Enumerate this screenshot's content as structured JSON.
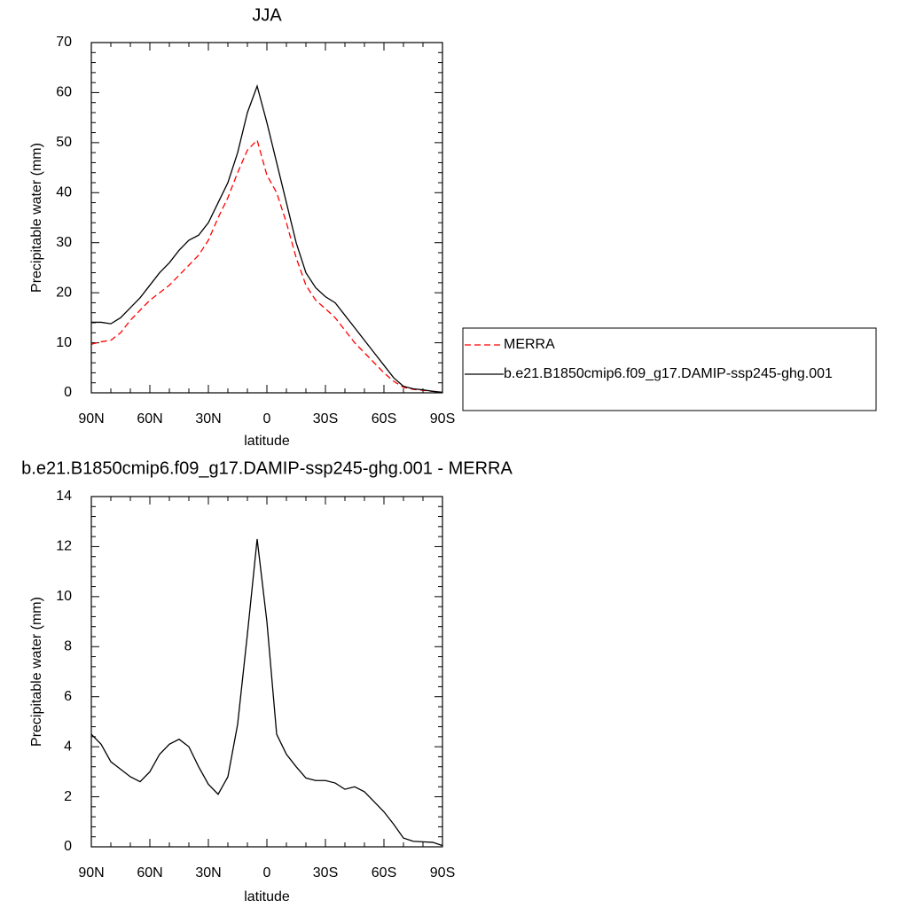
{
  "chart_data": [
    {
      "type": "line",
      "title": "JJA",
      "xlabel": "latitude",
      "ylabel": "Precipitable water (mm)",
      "x": [
        90,
        85,
        80,
        75,
        70,
        65,
        60,
        55,
        50,
        45,
        40,
        35,
        30,
        25,
        20,
        15,
        10,
        5,
        0,
        -5,
        -10,
        -15,
        -20,
        -25,
        -30,
        -35,
        -40,
        -45,
        -50,
        -55,
        -60,
        -65,
        -70,
        -75,
        -80,
        -85,
        -90
      ],
      "series": [
        {
          "name": "MERRA",
          "color": "#ff0000",
          "line_style": "dashed",
          "values": [
            9.7,
            10.2,
            10.5,
            12,
            14.5,
            16.5,
            18.5,
            20,
            21.5,
            23.5,
            25.5,
            27.5,
            30.5,
            35,
            39,
            44,
            48.5,
            50.5,
            43.5,
            40,
            34,
            27,
            21.5,
            18.5,
            16.8,
            15,
            12.5,
            10,
            8,
            6,
            4,
            2.3,
            1.1,
            0.7,
            0.5,
            0.3,
            0.1
          ]
        },
        {
          "name": "b.e21.B1850cmip6.f09_g17.DAMIP-ssp245-ghg.001",
          "color": "#000000",
          "line_style": "solid",
          "values": [
            14.1,
            14.1,
            13.8,
            15,
            17,
            19,
            21.5,
            24,
            26,
            28.5,
            30.5,
            31.5,
            34,
            38,
            42,
            48,
            56,
            61.3,
            54,
            46,
            38,
            30,
            24,
            21,
            19.2,
            18,
            15.5,
            13,
            10.5,
            8,
            5.5,
            3,
            1.3,
            0.8,
            0.6,
            0.3,
            0.1
          ]
        }
      ],
      "xlim": [
        90,
        -90
      ],
      "xticks": [
        {
          "value": 90,
          "label": "90N"
        },
        {
          "value": 60,
          "label": "60N"
        },
        {
          "value": 30,
          "label": "30N"
        },
        0,
        {
          "value": -30,
          "label": "30S"
        },
        {
          "value": -60,
          "label": "60S"
        },
        {
          "value": -90,
          "label": "90S"
        }
      ],
      "ylim": [
        0,
        70
      ],
      "yticks": [
        0,
        10,
        20,
        30,
        40,
        50,
        60,
        70
      ],
      "legend": "right"
    },
    {
      "type": "line",
      "title": "b.e21.B1850cmip6.f09_g17.DAMIP-ssp245-ghg.001 - MERRA",
      "xlabel": "latitude",
      "ylabel": "Precipitable water (mm)",
      "x": [
        90,
        85,
        80,
        75,
        70,
        65,
        60,
        55,
        50,
        45,
        40,
        35,
        30,
        25,
        20,
        15,
        10,
        5,
        0,
        -5,
        -10,
        -15,
        -20,
        -25,
        -30,
        -35,
        -40,
        -45,
        -50,
        -55,
        -60,
        -65,
        -70,
        -75,
        -80,
        -85,
        -90
      ],
      "values": [
        4.5,
        4.1,
        3.4,
        3.1,
        2.8,
        2.6,
        3.0,
        3.7,
        4.1,
        4.3,
        4.0,
        3.2,
        2.5,
        2.1,
        2.8,
        4.9,
        8.5,
        12.3,
        9.0,
        4.5,
        3.7,
        3.2,
        2.75,
        2.65,
        2.65,
        2.55,
        2.3,
        2.4,
        2.2,
        1.8,
        1.4,
        0.9,
        0.35,
        0.22,
        0.2,
        0.18,
        0.05
      ],
      "color": "#000000",
      "xlim": [
        90,
        -90
      ],
      "xticks": [
        {
          "value": 90,
          "label": "90N"
        },
        {
          "value": 60,
          "label": "60N"
        },
        {
          "value": 30,
          "label": "30N"
        },
        0,
        {
          "value": -30,
          "label": "30S"
        },
        {
          "value": -60,
          "label": "60S"
        },
        {
          "value": -90,
          "label": "90S"
        }
      ],
      "ylim": [
        0,
        14
      ],
      "yticks": [
        0,
        2,
        4,
        6,
        8,
        10,
        12,
        14
      ]
    }
  ]
}
